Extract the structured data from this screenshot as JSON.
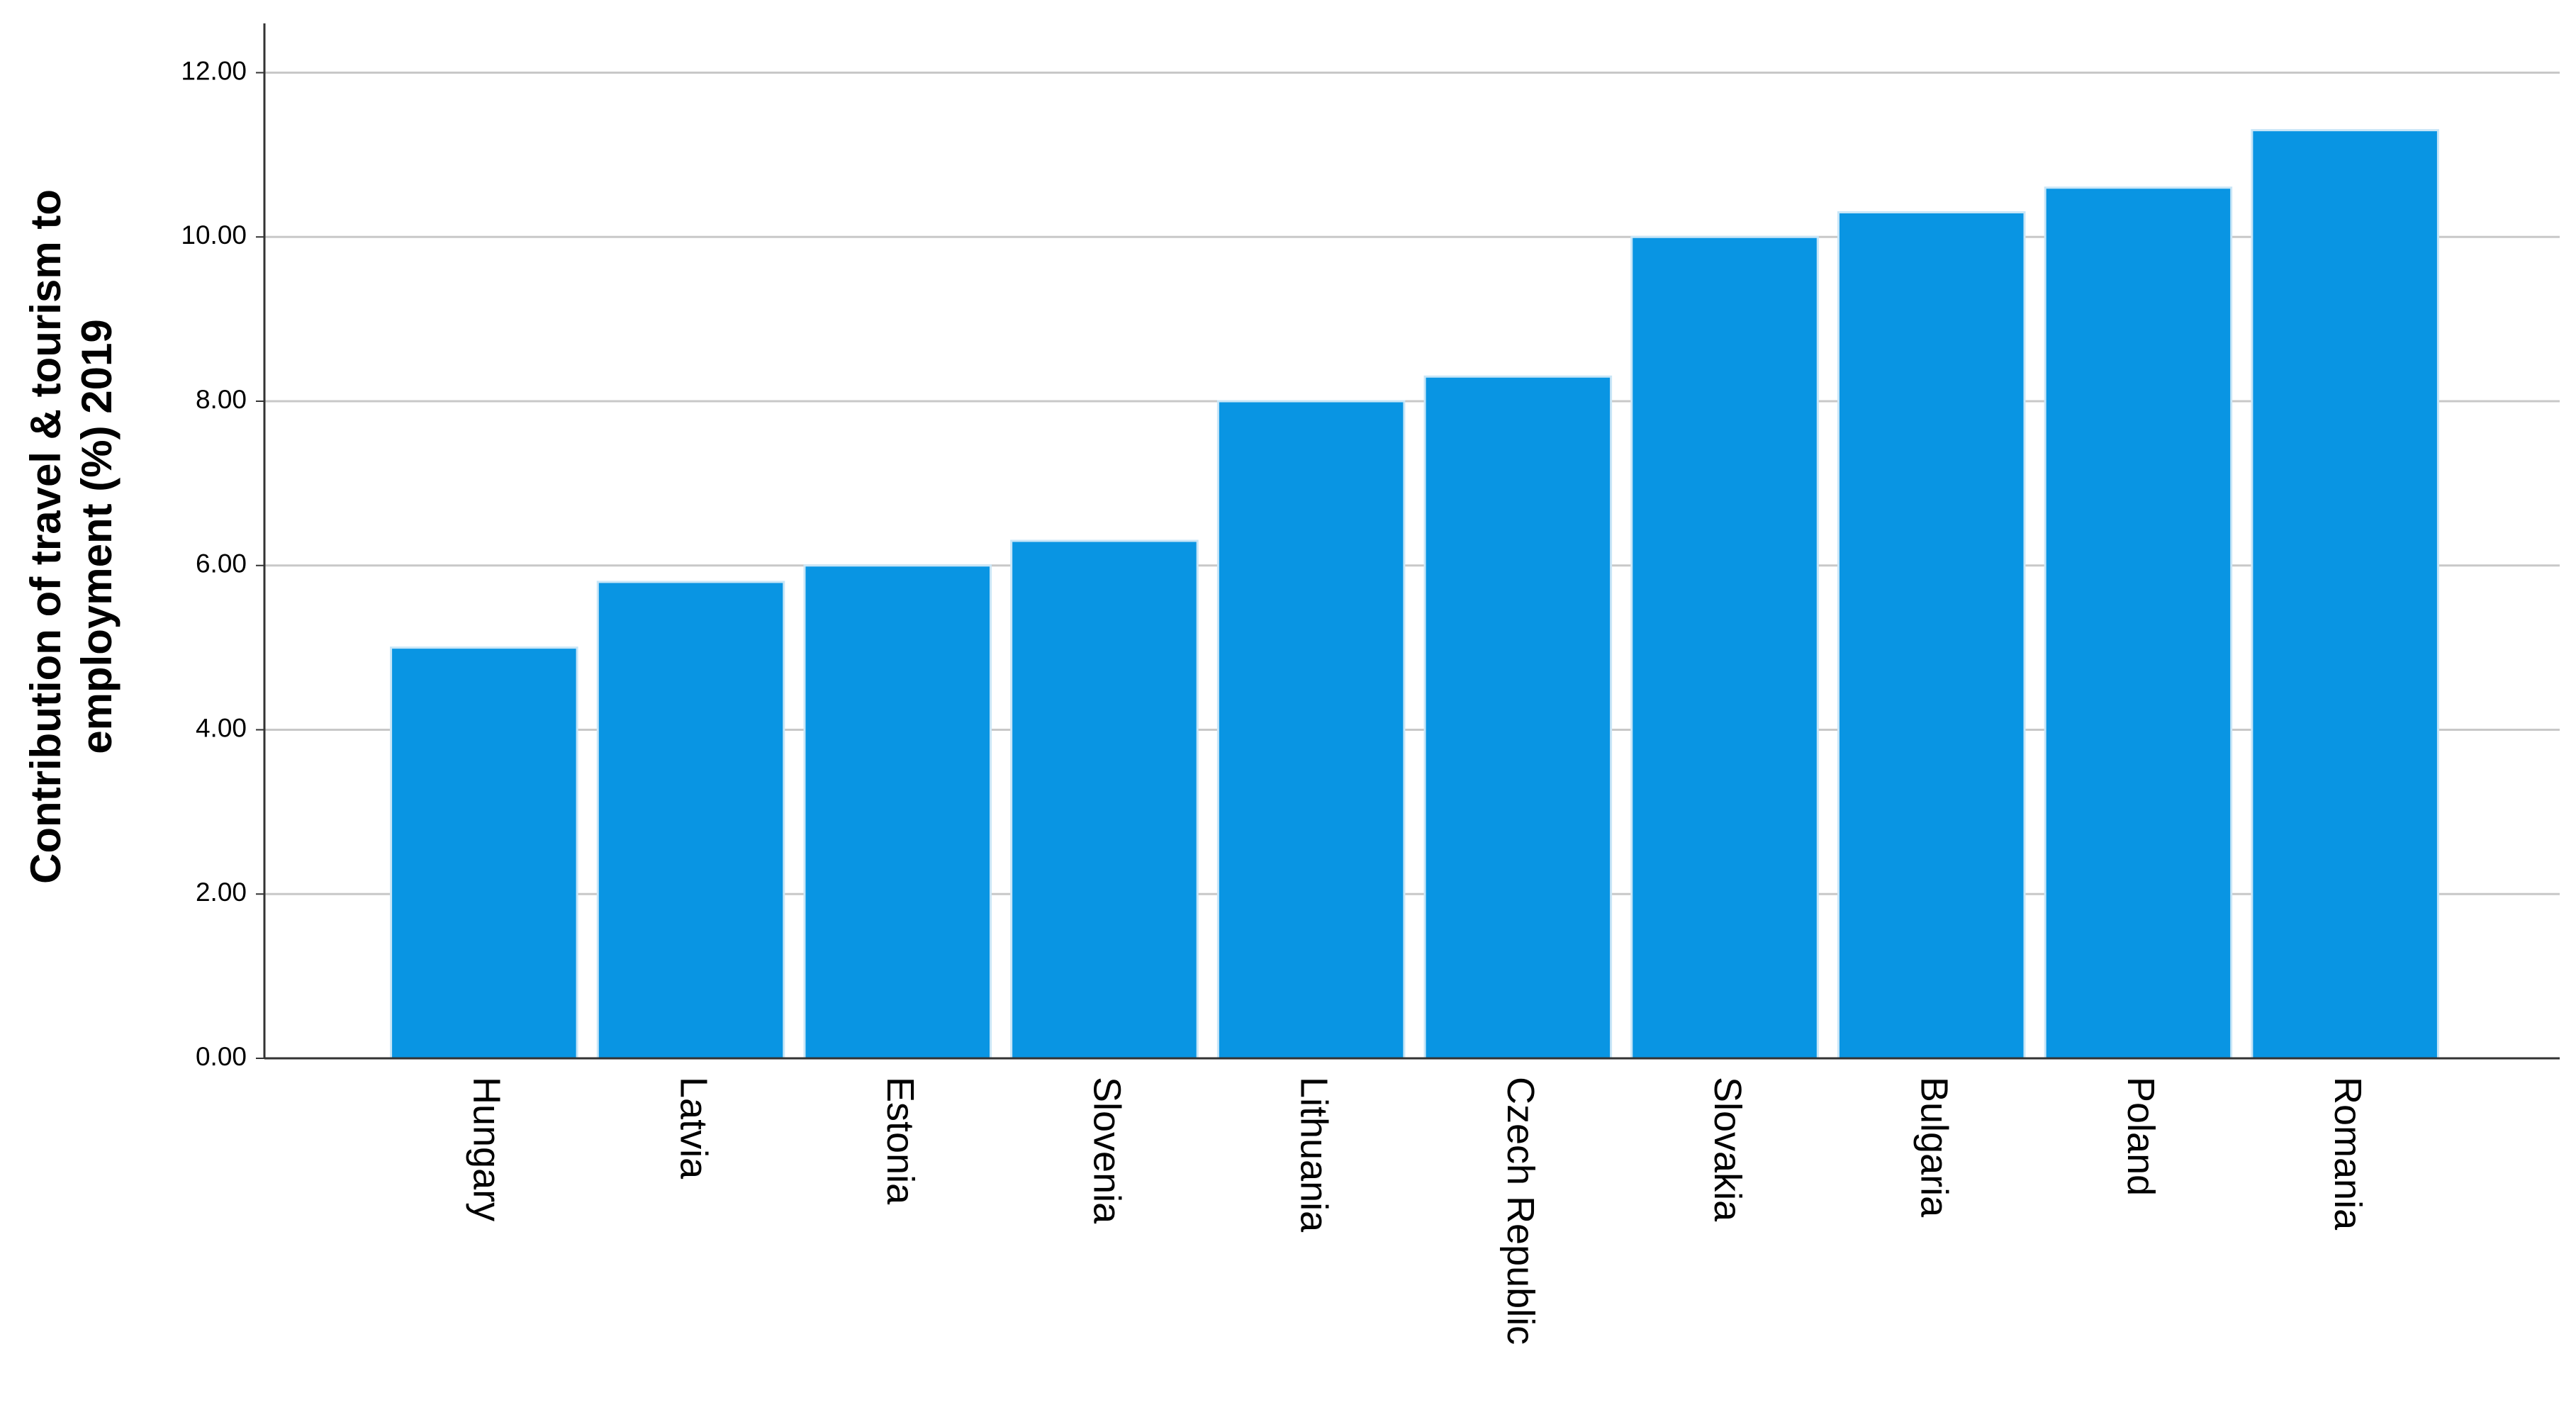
{
  "chart_data": {
    "type": "bar",
    "ylabel": [
      "Contribution of travel & tourism to",
      "employment (%) 2019"
    ],
    "categories": [
      "Hungary",
      "Latvia",
      "Estonia",
      "Slovenia",
      "Lithuania",
      "Czech Republic",
      "Slovakia",
      "Bulgaria",
      "Poland",
      "Romania"
    ],
    "values": [
      5.0,
      5.8,
      6.0,
      6.3,
      8.0,
      8.3,
      10.0,
      10.3,
      10.6,
      11.3
    ],
    "color": "#0995e3",
    "ylim": [
      0,
      12.6
    ],
    "yticks": [
      {
        "value": 0,
        "label": "0.00"
      },
      {
        "value": 2,
        "label": "2.00"
      },
      {
        "value": 4,
        "label": "4.00"
      },
      {
        "value": 6,
        "label": "6.00"
      },
      {
        "value": 8,
        "label": "8.00"
      },
      {
        "value": 10,
        "label": "10.00"
      },
      {
        "value": 12,
        "label": "12.00"
      }
    ],
    "grid": true
  }
}
